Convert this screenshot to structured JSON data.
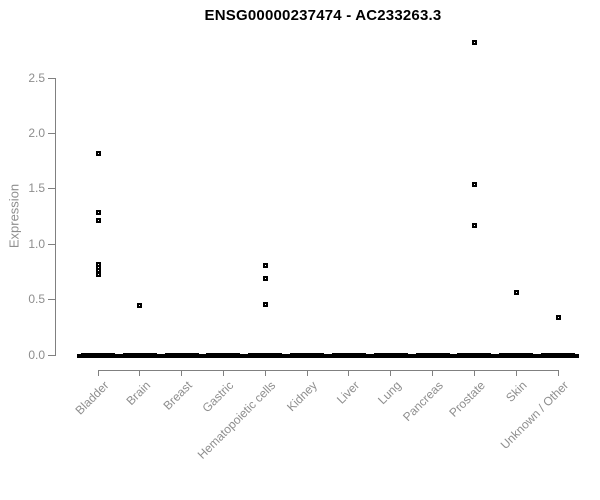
{
  "title": "ENSG00000237474 - AC233263.3",
  "chart_data": {
    "type": "scatter",
    "subtype": "strip-plot",
    "title": "ENSG00000237474 - AC233263.3",
    "xlabel": "",
    "ylabel": "Expression",
    "ylim": [
      0,
      2.9
    ],
    "ytick_labels": [
      "0.0",
      "0.5",
      "1.0",
      "1.5",
      "2.0",
      "2.5"
    ],
    "grid": false,
    "legend": "none",
    "marker": "open-square",
    "categories": [
      "Bladder",
      "Brain",
      "Breast",
      "Gastric",
      "Hematopoietic cells",
      "Kidney",
      "Liver",
      "Lung",
      "Pancreas",
      "Prostate",
      "Skin",
      "Unknown / Other"
    ],
    "series": [
      {
        "category": "Bladder",
        "nonzero_values": [
          1.82,
          1.29,
          1.21,
          0.82,
          0.79,
          0.76,
          0.73
        ],
        "zero_cluster": true
      },
      {
        "category": "Brain",
        "nonzero_values": [
          0.45
        ],
        "zero_cluster": true
      },
      {
        "category": "Breast",
        "nonzero_values": [],
        "zero_cluster": true
      },
      {
        "category": "Gastric",
        "nonzero_values": [],
        "zero_cluster": true
      },
      {
        "category": "Hematopoietic cells",
        "nonzero_values": [
          0.81,
          0.69,
          0.46
        ],
        "zero_cluster": true
      },
      {
        "category": "Kidney",
        "nonzero_values": [],
        "zero_cluster": true
      },
      {
        "category": "Liver",
        "nonzero_values": [],
        "zero_cluster": true
      },
      {
        "category": "Lung",
        "nonzero_values": [],
        "zero_cluster": true
      },
      {
        "category": "Pancreas",
        "nonzero_values": [],
        "zero_cluster": true
      },
      {
        "category": "Prostate",
        "nonzero_values": [
          2.82,
          1.54,
          1.17
        ],
        "zero_cluster": true
      },
      {
        "category": "Skin",
        "nonzero_values": [
          0.56
        ],
        "zero_cluster": true
      },
      {
        "category": "Unknown / Other",
        "nonzero_values": [
          0.34
        ],
        "zero_cluster": true
      }
    ],
    "colors": {
      "point": "#000000",
      "axis_line": "#808080",
      "axis_text": "#8e8e8e",
      "title_text": "#000000",
      "background": "#ffffff"
    }
  }
}
